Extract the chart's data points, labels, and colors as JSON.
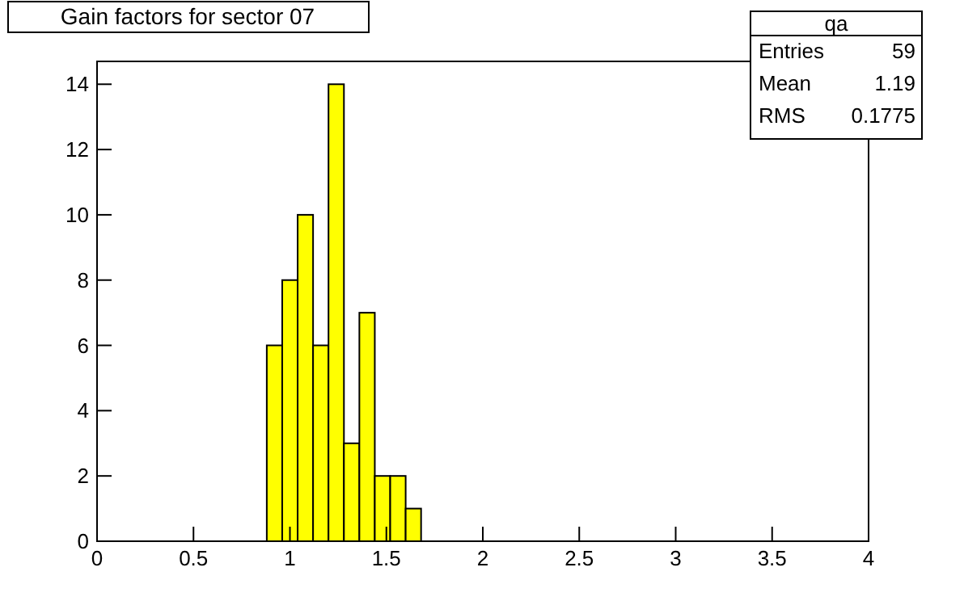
{
  "chart_data": {
    "type": "histogram",
    "title": "Gain factors for sector 07",
    "bins": [
      0.88,
      0.96,
      1.04,
      1.12,
      1.2,
      1.28,
      1.36,
      1.44,
      1.52,
      1.6,
      1.68
    ],
    "values": [
      6,
      8,
      10,
      6,
      14,
      3,
      7,
      2,
      2,
      1
    ],
    "color": "#ffff00",
    "xlim": [
      0,
      4
    ],
    "xticks": [
      0,
      0.5,
      1,
      1.5,
      2,
      2.5,
      3,
      3.5,
      4
    ],
    "ylim": [
      0,
      14.7
    ],
    "yticks": [
      0,
      2,
      4,
      6,
      8,
      10,
      12,
      14
    ],
    "grid": false,
    "annotations": [
      "qa",
      "Entries",
      "59",
      "Mean",
      "1.19",
      "RMS",
      "0.1775"
    ]
  }
}
